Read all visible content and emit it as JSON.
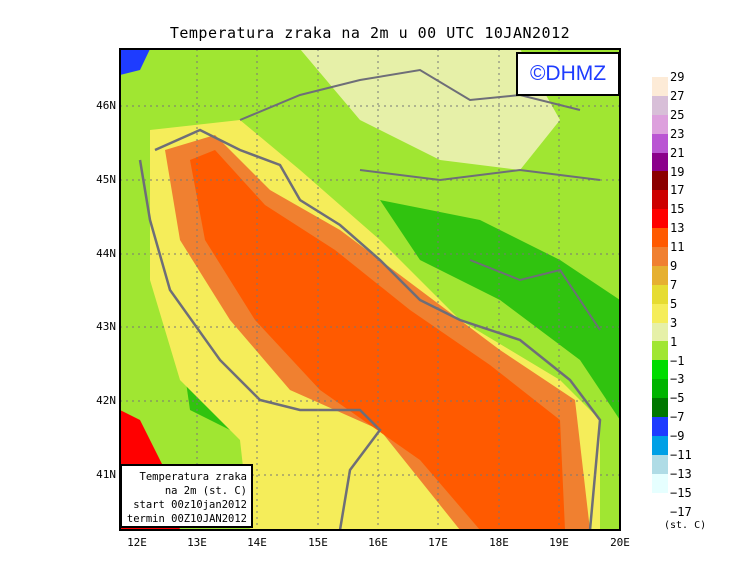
{
  "title": "Temperatura zraka na 2m u 00 UTC 10JAN2012",
  "logo": "©DHMZ",
  "legend_box": {
    "line1": "Temperatura zraka",
    "line2": "na 2m (st. C)",
    "line3": "start 00z10jan2012",
    "line4": "termin 00Z10JAN2012"
  },
  "lat_labels": [
    "46N",
    "45N",
    "44N",
    "43N",
    "42N",
    "41N"
  ],
  "lon_labels": [
    "12E",
    "13E",
    "14E",
    "15E",
    "16E",
    "17E",
    "18E",
    "19E",
    "20E"
  ],
  "colorbar": {
    "labels": [
      "29",
      "27",
      "25",
      "23",
      "21",
      "19",
      "17",
      "15",
      "13",
      "11",
      "9",
      "7",
      "5",
      "3",
      "1",
      "−1",
      "−3",
      "−5",
      "−7",
      "−9",
      "−11",
      "−13",
      "−15",
      "−17"
    ],
    "colors": [
      "#fdebd7",
      "#d8bfd8",
      "#dda0dd",
      "#ba55d3",
      "#8b008b",
      "#8b0000",
      "#cd0000",
      "#ff0000",
      "#ff5a00",
      "#f08030",
      "#e6b030",
      "#e6dc32",
      "#f5ed5a",
      "#e6f0a8",
      "#a0e632",
      "#00dc00",
      "#00b400",
      "#007800",
      "#1e3cff",
      "#00a0e6",
      "#afdce6",
      "#e6ffff"
    ],
    "unit": "(st. C)"
  }
}
